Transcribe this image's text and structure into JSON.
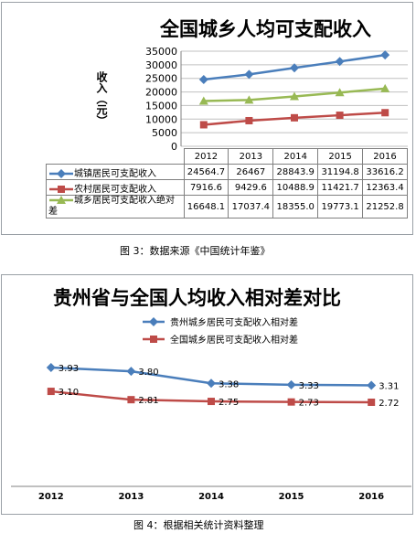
{
  "chart_data": [
    {
      "type": "line",
      "title": "全国城乡人均可支配收入",
      "ylabel": "收入（元）",
      "categories": [
        "2012",
        "2013",
        "2014",
        "2015",
        "2016"
      ],
      "ylim": [
        0,
        35000
      ],
      "yticks": [
        "0",
        "5000",
        "10000",
        "15000",
        "20000",
        "25000",
        "30000",
        "35000"
      ],
      "grid": true,
      "legend": "data-table",
      "series": [
        {
          "name": "城镇居民可支配收入",
          "values": [
            24564.7,
            26467,
            28843.9,
            31194.8,
            33616.2
          ],
          "labels": [
            "24564.7",
            "26467",
            "28843.9",
            "31194.8",
            "33616.2"
          ],
          "color": "#4a7ebb",
          "marker": "diamond"
        },
        {
          "name": "农村居民可支配收入",
          "values": [
            7916.6,
            9429.6,
            10488.9,
            11421.7,
            12363.4
          ],
          "labels": [
            "7916.6",
            "9429.6",
            "10488.9",
            "11421.7",
            "12363.4"
          ],
          "color": "#be4b48",
          "marker": "square"
        },
        {
          "name": "城乡居民可支配收入绝对差",
          "values": [
            16648.1,
            17037.4,
            18355.0,
            19773.1,
            21252.8
          ],
          "labels": [
            "16648.1",
            "17037.4",
            "18355.0",
            "19773.1",
            "21252.8"
          ],
          "color": "#98b954",
          "marker": "triangle"
        }
      ]
    },
    {
      "type": "line",
      "title": "贵州省与全国人均收入相对差对比",
      "categories": [
        "2012",
        "2013",
        "2014",
        "2015",
        "2016"
      ],
      "legend": "top",
      "series": [
        {
          "name": "贵州城乡居民可支配收入相对差",
          "values": [
            3.93,
            3.8,
            3.38,
            3.33,
            3.31
          ],
          "labels": [
            "3.93",
            "3.80",
            "3.38",
            "3.33",
            "3.31"
          ],
          "color": "#4a7ebb",
          "marker": "diamond"
        },
        {
          "name": "全国城乡居民可支配收入相对差",
          "values": [
            3.1,
            2.81,
            2.75,
            2.73,
            2.72
          ],
          "labels": [
            "3.10",
            "2.81",
            "2.75",
            "2.73",
            "2.72"
          ],
          "color": "#be4b48",
          "marker": "square"
        }
      ]
    }
  ],
  "captions": {
    "fig3": "图 3：数据来源《中国统计年鉴》",
    "fig4": "图 4：根据相关统计资料整理"
  }
}
